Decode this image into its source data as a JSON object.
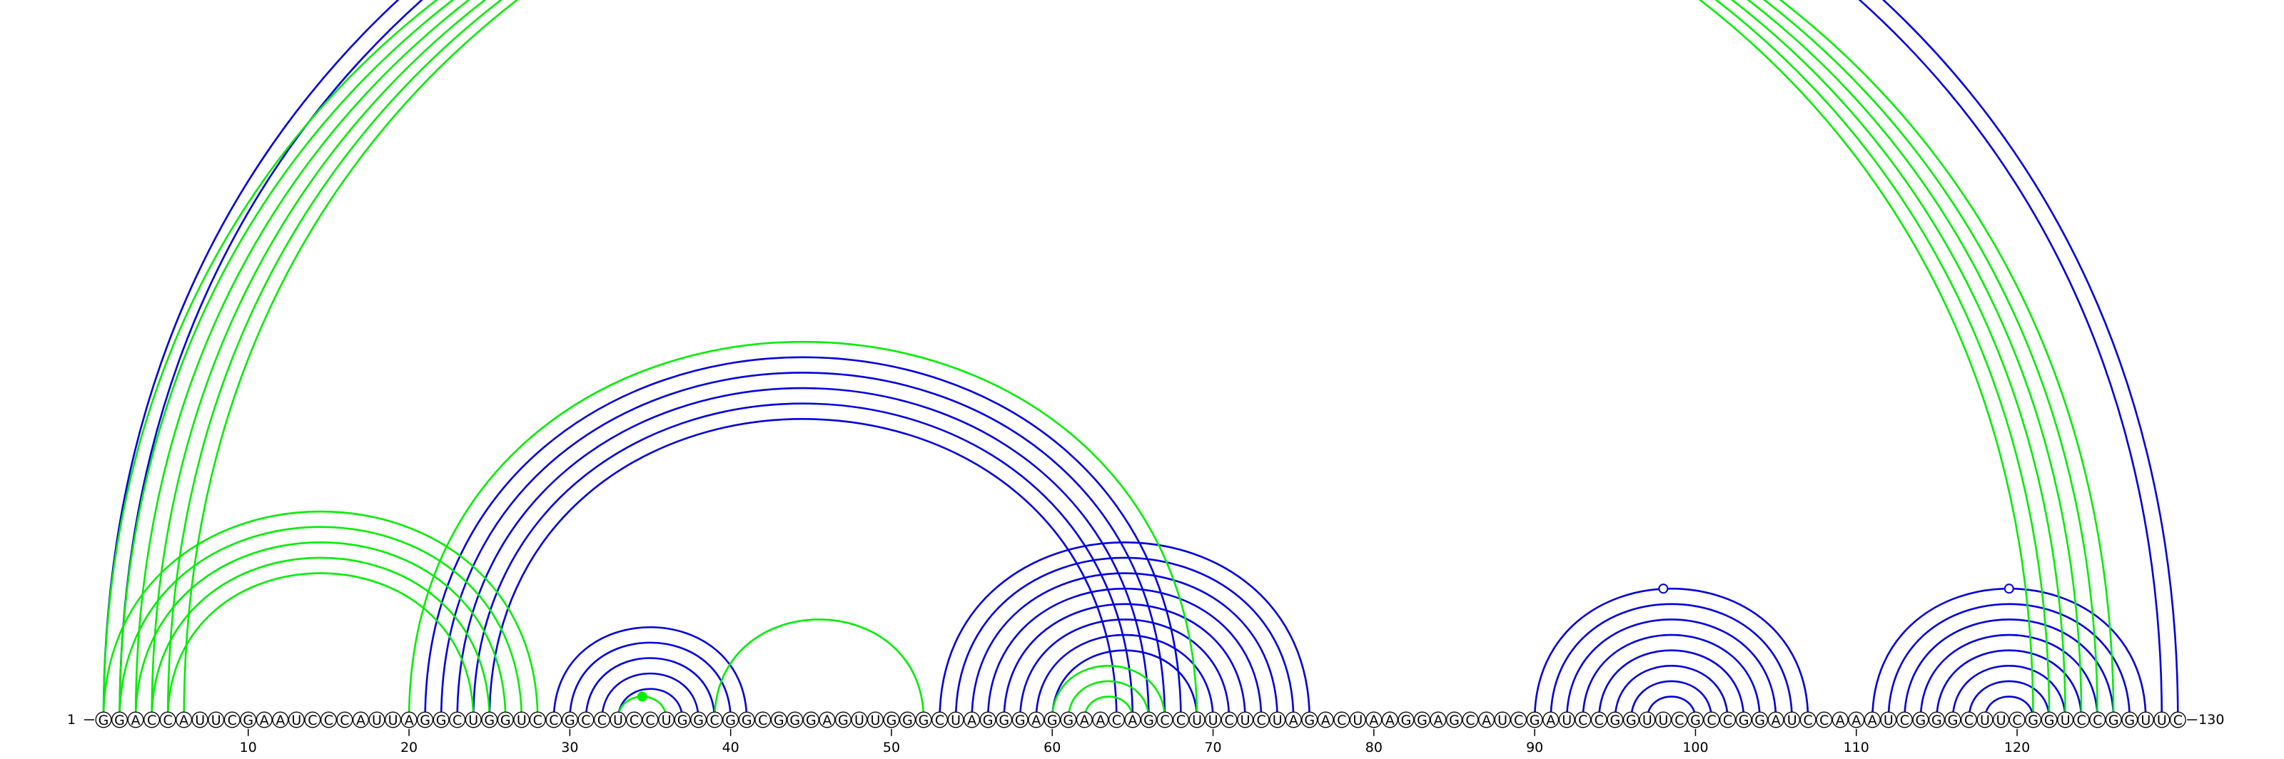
{
  "sequence": "GGACCAUUCGAAUCCCAUUAGGCUGGUCCGCCUCCUGGCGGCGGGAGUUGGGCUAGGGAGGAACAGCCUUCUCUAGACUAAGGAGCAUCGAUCCGGUUCGCCGGAUCCAAAUCGGGCUUCGGUCCGGUUC",
  "length": 130,
  "start_label": "1",
  "end_label": "130",
  "ticks": [
    "10",
    "20",
    "30",
    "40",
    "50",
    "60",
    "70",
    "80",
    "90",
    "100",
    "110",
    "120"
  ],
  "colors": {
    "structure_a": "#0000dd",
    "structure_b": "#00ee00"
  },
  "arcs_blue": [
    [
      1,
      130
    ],
    [
      2,
      129
    ],
    [
      21,
      68
    ],
    [
      22,
      67
    ],
    [
      23,
      66
    ],
    [
      24,
      65
    ],
    [
      25,
      64
    ],
    [
      29,
      41
    ],
    [
      30,
      40
    ],
    [
      31,
      39
    ],
    [
      32,
      38
    ],
    [
      33,
      37
    ],
    [
      53,
      76
    ],
    [
      54,
      75
    ],
    [
      55,
      74
    ],
    [
      56,
      73
    ],
    [
      57,
      72
    ],
    [
      58,
      71
    ],
    [
      59,
      70
    ],
    [
      60,
      69
    ],
    [
      90,
      107
    ],
    [
      91,
      106
    ],
    [
      92,
      105
    ],
    [
      93,
      104
    ],
    [
      94,
      103
    ],
    [
      95,
      102
    ],
    [
      96,
      101
    ],
    [
      97,
      100
    ],
    [
      111,
      128
    ],
    [
      112,
      127
    ],
    [
      113,
      126
    ],
    [
      114,
      125
    ],
    [
      115,
      124
    ],
    [
      116,
      123
    ],
    [
      117,
      122
    ],
    [
      118,
      121
    ]
  ],
  "arcs_green": [
    [
      1,
      121
    ],
    [
      2,
      122
    ],
    [
      3,
      123
    ],
    [
      4,
      124
    ],
    [
      5,
      125
    ],
    [
      6,
      126
    ],
    [
      1,
      28
    ],
    [
      2,
      27
    ],
    [
      3,
      26
    ],
    [
      4,
      25
    ],
    [
      5,
      24
    ],
    [
      20,
      69
    ],
    [
      33,
      36
    ],
    [
      39,
      52
    ],
    [
      60,
      67
    ],
    [
      61,
      66
    ],
    [
      62,
      65
    ]
  ],
  "loop_markers_blue": [
    65,
    98,
    119.5
  ],
  "loop_markers_green": [
    34.5
  ]
}
